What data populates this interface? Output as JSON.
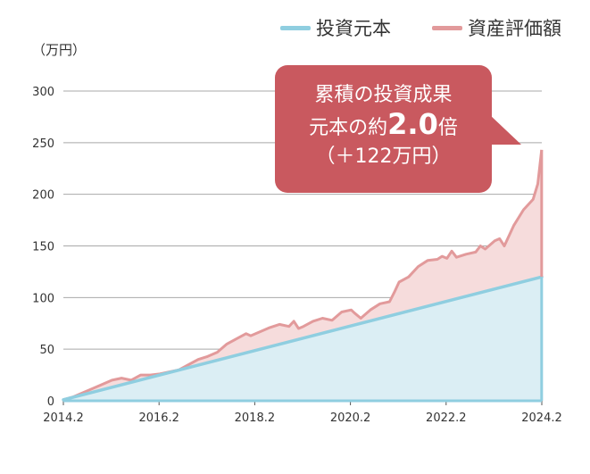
{
  "legend": [
    {
      "label": "投資元本",
      "color": "#8fcee0"
    },
    {
      "label": "資産評価額",
      "color": "#e29a9b"
    }
  ],
  "unit_label": "（万円）",
  "callout": {
    "line1": "累積の投資成果",
    "line2_prefix": "元本の約",
    "line2_value": "2.0",
    "line2_suffix": "倍",
    "line3": "（＋122万円）"
  },
  "colors": {
    "principal_line": "#8fcee0",
    "principal_fill": "#dbeef4",
    "asset_line": "#e29a9b",
    "asset_fill": "#f6dcdc",
    "callout": "#c9595f"
  },
  "chart_data": {
    "type": "area",
    "ylim": [
      0,
      300
    ],
    "yticks": [
      0,
      50,
      100,
      150,
      200,
      250,
      300
    ],
    "xlim": [
      2014.0833,
      2024.0833
    ],
    "xticks": [
      {
        "label": "2014.2",
        "value": 2014.0833
      },
      {
        "label": "2016.2",
        "value": 2016.0833
      },
      {
        "label": "2018.2",
        "value": 2018.0833
      },
      {
        "label": "2020.2",
        "value": 2020.0833
      },
      {
        "label": "2022.2",
        "value": 2022.0833
      },
      {
        "label": "2024.2",
        "value": 2024.0833
      }
    ],
    "grid": true,
    "series": [
      {
        "name": "投資元本",
        "x": [
          2014.0833,
          2024.0833
        ],
        "values": [
          1,
          120
        ]
      },
      {
        "name": "資産評価額",
        "x": [
          2014.08,
          2014.3,
          2014.5,
          2014.7,
          2014.9,
          2015.1,
          2015.3,
          2015.5,
          2015.7,
          2015.9,
          2016.1,
          2016.3,
          2016.5,
          2016.7,
          2016.9,
          2017.1,
          2017.3,
          2017.5,
          2017.7,
          2017.9,
          2018.0,
          2018.2,
          2018.4,
          2018.6,
          2018.8,
          2018.9,
          2019.0,
          2019.1,
          2019.3,
          2019.5,
          2019.7,
          2019.9,
          2020.1,
          2020.17,
          2020.3,
          2020.5,
          2020.7,
          2020.9,
          2021.0,
          2021.1,
          2021.3,
          2021.5,
          2021.7,
          2021.9,
          2022.0,
          2022.1,
          2022.2,
          2022.3,
          2022.5,
          2022.7,
          2022.8,
          2022.9,
          2023.1,
          2023.2,
          2023.3,
          2023.5,
          2023.7,
          2023.9,
          2024.0,
          2024.08
        ],
        "values": [
          1,
          4,
          8,
          12,
          16,
          20,
          22,
          20,
          25,
          25,
          26,
          28,
          30,
          35,
          40,
          43,
          47,
          55,
          60,
          65,
          63,
          67,
          71,
          74,
          72,
          77,
          70,
          72,
          77,
          80,
          78,
          86,
          88,
          85,
          80,
          88,
          94,
          96,
          105,
          115,
          120,
          130,
          136,
          137,
          140,
          138,
          145,
          139,
          142,
          144,
          150,
          147,
          155,
          157,
          150,
          170,
          185,
          195,
          210,
          243
        ]
      }
    ]
  }
}
